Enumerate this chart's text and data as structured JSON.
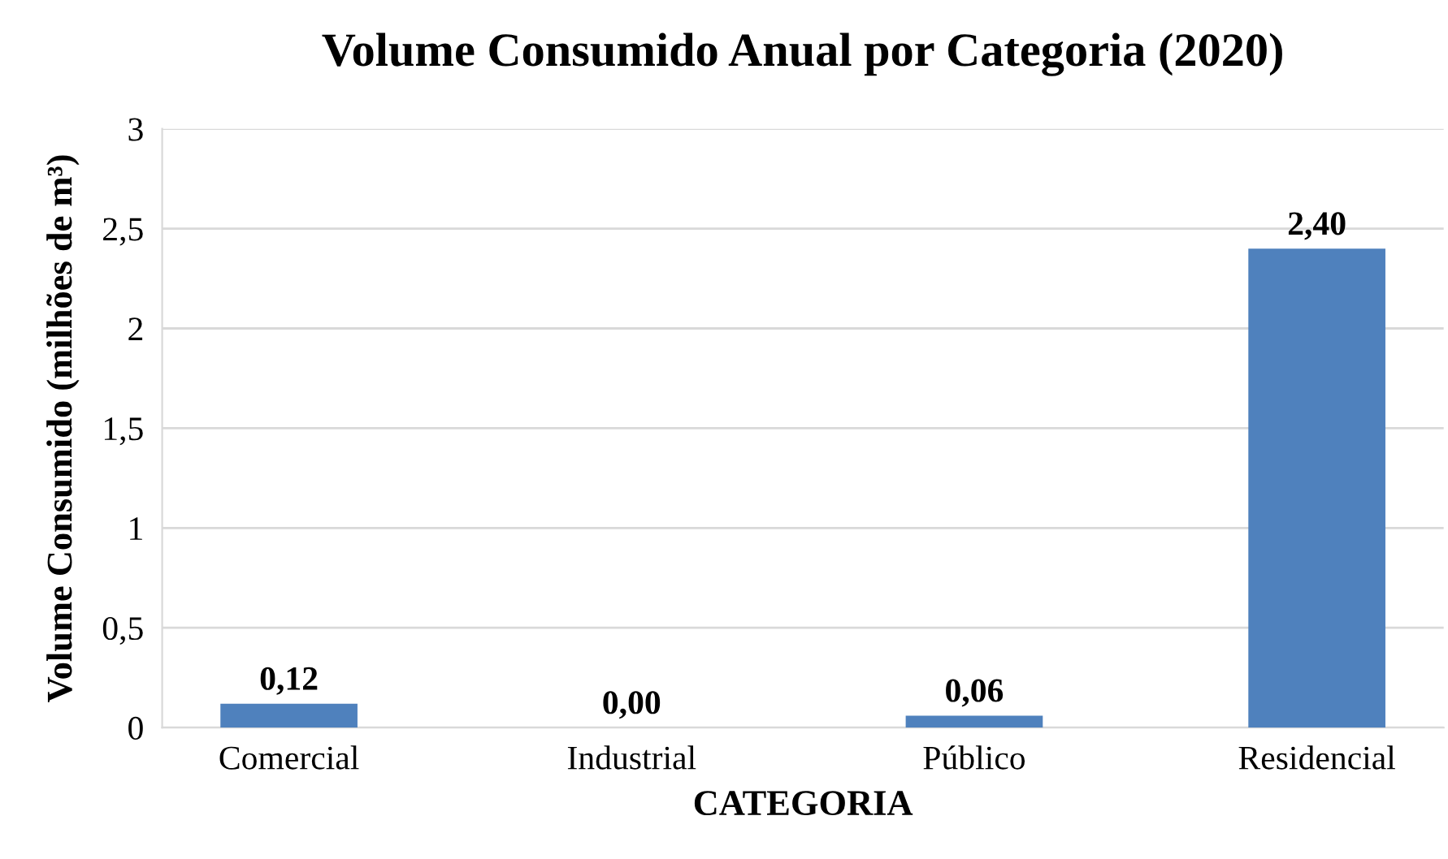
{
  "chart_data": {
    "type": "bar",
    "title": "Volume Consumido Anual por Categoria (2020)",
    "xlabel": "CATEGORIA",
    "ylabel": "Volume Consumido (milhões de m³)",
    "categories": [
      "Comercial",
      "Industrial",
      "Público",
      "Residencial"
    ],
    "values": [
      0.12,
      0.0,
      0.06,
      2.4
    ],
    "value_labels": [
      "0,12",
      "0,00",
      "0,06",
      "2,40"
    ],
    "color": "#4f81bd",
    "ylim": [
      0,
      3
    ],
    "yticks": [
      0,
      {
        "value": 0.5,
        "label": "0,5"
      },
      1,
      {
        "value": 1.5,
        "label": "1,5"
      },
      2,
      {
        "value": 2.5,
        "label": "2,5"
      },
      3
    ],
    "grid": "y",
    "legend": false
  }
}
